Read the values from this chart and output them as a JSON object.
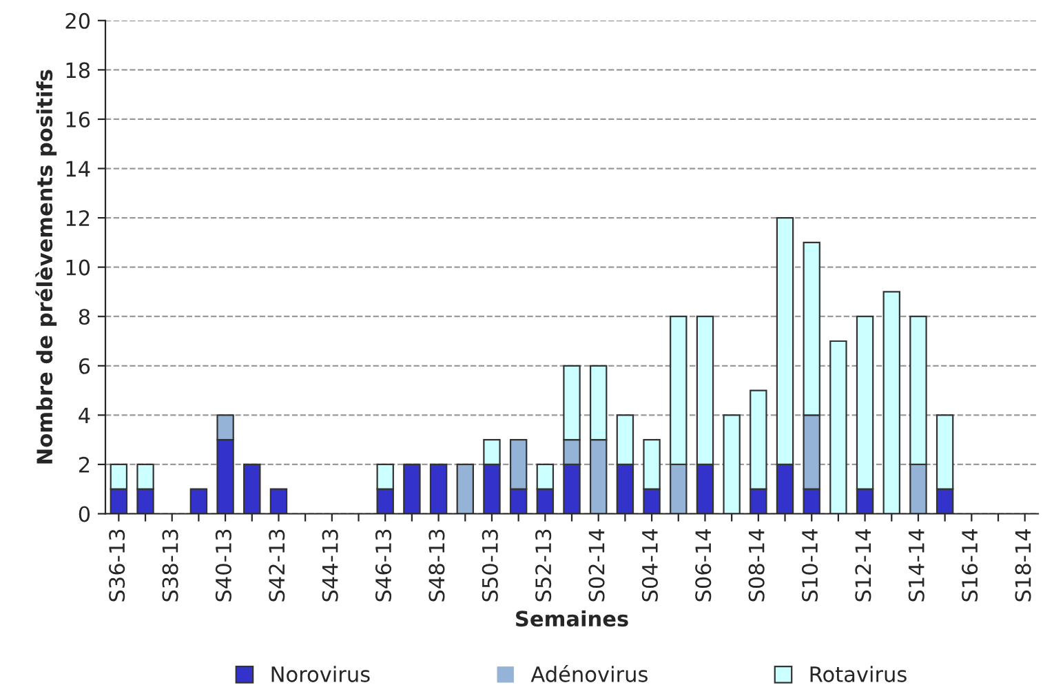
{
  "chart_data": {
    "type": "bar",
    "stacked": true,
    "xlabel": "Semaines",
    "ylabel": "Nombre de prélèvements positifs",
    "categories": [
      "S36-13",
      null,
      "S38-13",
      null,
      "S40-13",
      null,
      "S42-13",
      null,
      "S44-13",
      null,
      "S46-13",
      null,
      "S48-13",
      null,
      "S50-13",
      null,
      "S52-13",
      null,
      "S02-14",
      null,
      "S04-14",
      null,
      "S06-14",
      null,
      "S08-14",
      null,
      "S10-14",
      null,
      "S12-14",
      null,
      "S14-14",
      null,
      "S16-14",
      null,
      "S18-14"
    ],
    "series": [
      {
        "name": "Norovirus",
        "color": "#3333cc",
        "values": [
          1,
          1,
          0,
          1,
          3,
          2,
          1,
          0,
          0,
          0,
          1,
          2,
          2,
          0,
          2,
          1,
          1,
          2,
          0,
          2,
          1,
          0,
          2,
          0,
          1,
          2,
          1,
          0,
          1,
          0,
          0,
          1,
          0,
          0,
          0
        ]
      },
      {
        "name": "Adénovirus",
        "color": "#95b3d7",
        "values": [
          0,
          0,
          0,
          0,
          1,
          0,
          0,
          0,
          0,
          0,
          0,
          0,
          0,
          2,
          0,
          2,
          0,
          1,
          3,
          0,
          0,
          2,
          0,
          0,
          0,
          0,
          3,
          0,
          0,
          0,
          2,
          0,
          0,
          0,
          0
        ]
      },
      {
        "name": "Rotavirus",
        "color": "#ccffff",
        "values": [
          1,
          1,
          0,
          0,
          0,
          0,
          0,
          0,
          0,
          0,
          1,
          0,
          0,
          0,
          1,
          0,
          1,
          3,
          3,
          2,
          2,
          6,
          6,
          4,
          4,
          10,
          7,
          7,
          7,
          9,
          6,
          3,
          0,
          0,
          0
        ]
      }
    ],
    "ylim": [
      0,
      20
    ],
    "yticks": [
      0,
      2,
      4,
      6,
      8,
      10,
      12,
      14,
      16,
      18,
      20
    ],
    "grid": "y",
    "legend": "bottom"
  }
}
